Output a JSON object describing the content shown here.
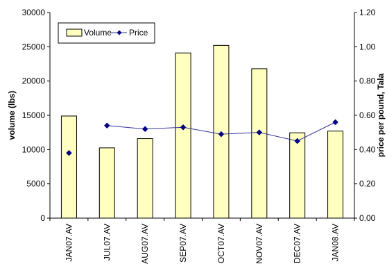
{
  "chart_data": {
    "type": "bar",
    "categories": [
      "JAN07.AV",
      "JUL07.AV",
      "AUG07.AV",
      "SEP07.AV",
      "OCT07.AV",
      "NOV07.AV",
      "DEC07.AV",
      "JAN08.AV"
    ],
    "series": [
      {
        "name": "Volume",
        "type": "bar",
        "axis": "left",
        "values": [
          14900,
          10250,
          11600,
          24100,
          25200,
          21800,
          12450,
          12700
        ]
      },
      {
        "name": "Price",
        "type": "line",
        "axis": "right",
        "connected_from_index": 1,
        "values": [
          0.38,
          0.54,
          0.52,
          0.53,
          0.49,
          0.5,
          0.45,
          0.56
        ]
      }
    ],
    "ylabel": "volume (lbs)",
    "y2label": "price per pound, Tala",
    "ylim": [
      0,
      30000
    ],
    "y2lim": [
      0,
      1.2
    ],
    "yticks": [
      "0",
      "5000",
      "10000",
      "15000",
      "20000",
      "25000",
      "30000"
    ],
    "y2ticks": [
      "0.00",
      "0.20",
      "0.40",
      "0.60",
      "0.80",
      "1.00",
      "1.20"
    ],
    "grid": false,
    "legend_position": "top-left",
    "colors": {
      "bar_fill": "#ffffc0",
      "bar_stroke": "#000000",
      "line": "#333399",
      "marker": "#000080"
    }
  }
}
